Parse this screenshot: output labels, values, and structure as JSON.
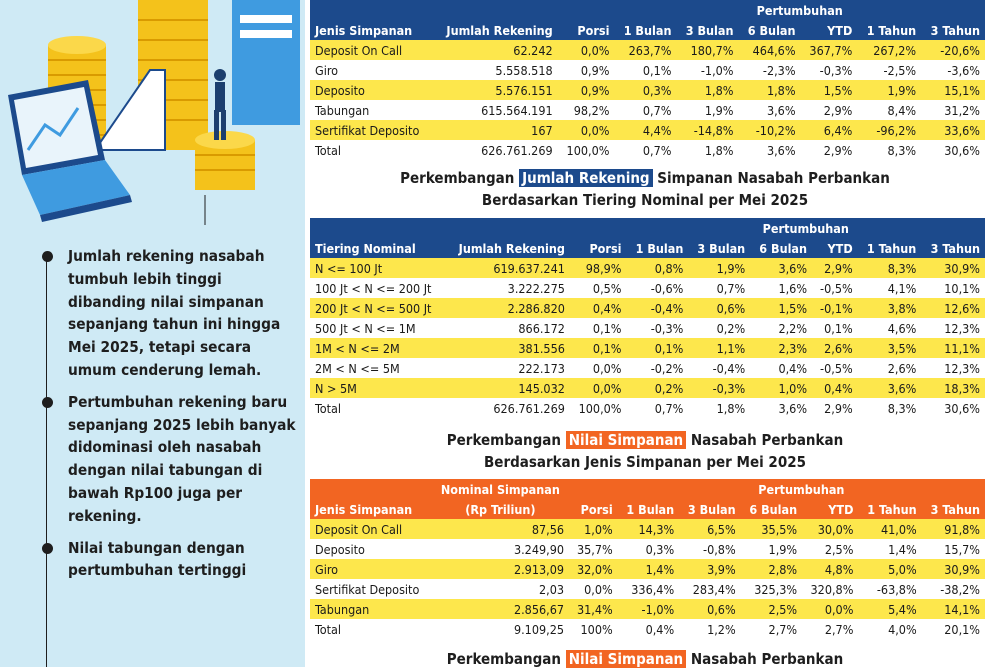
{
  "left_panel": {
    "bullets": [
      "Jumlah rekening nasabah tumbuh lebih tinggi dibanding nilai simpanan sepanjang tahun ini hingga Mei 2025, tetapi secara umum cenderung lemah.",
      "Pertumbuhan rekening baru sepanjang 2025 lebih banyak didominasi oleh nasabah dengan nilai tabungan di bawah Rp100 juga per rekening.",
      "Nilai tabungan dengan pertumbuhan tertinggi"
    ]
  },
  "table1": {
    "group_header": "Pertumbuhan",
    "headers": [
      "Jenis Simpanan",
      "Jumlah Rekening",
      "Porsi",
      "1 Bulan",
      "3 Bulan",
      "6 Bulan",
      "YTD",
      "1 Tahun",
      "3 Tahun"
    ],
    "rows": [
      [
        "Deposit On Call",
        "62.242",
        "0,0%",
        "263,7%",
        "180,7%",
        "464,6%",
        "367,7%",
        "267,2%",
        "-20,6%"
      ],
      [
        "Giro",
        "5.558.518",
        "0,9%",
        "0,1%",
        "-1,0%",
        "-2,3%",
        "-0,3%",
        "-2,5%",
        "-3,6%"
      ],
      [
        "Deposito",
        "5.576.151",
        "0,9%",
        "0,3%",
        "1,8%",
        "1,8%",
        "1,5%",
        "1,9%",
        "15,1%"
      ],
      [
        "Tabungan",
        "615.564.191",
        "98,2%",
        "0,7%",
        "1,9%",
        "3,6%",
        "2,9%",
        "8,4%",
        "31,2%"
      ],
      [
        "Sertifikat Deposito",
        "167",
        "0,0%",
        "4,4%",
        "-14,8%",
        "-10,2%",
        "6,4%",
        "-96,2%",
        "33,6%"
      ],
      [
        "Total",
        "626.761.269",
        "100,0%",
        "0,7%",
        "1,8%",
        "3,6%",
        "2,9%",
        "8,3%",
        "30,6%"
      ]
    ]
  },
  "section2": {
    "title_pre": "Perkembangan",
    "title_hl": "Jumlah Rekening",
    "title_post": "Simpanan Nasabah Perbankan",
    "subtitle": "Berdasarkan Tiering Nominal per Mei 2025"
  },
  "table2": {
    "group_header": "Pertumbuhan",
    "headers": [
      "Tiering Nominal",
      "Jumlah Rekening",
      "Porsi",
      "1 Bulan",
      "3 Bulan",
      "6 Bulan",
      "YTD",
      "1 Tahun",
      "3 Tahun"
    ],
    "rows": [
      [
        "N <= 100 Jt",
        "619.637.241",
        "98,9%",
        "0,8%",
        "1,9%",
        "3,6%",
        "2,9%",
        "8,3%",
        "30,9%"
      ],
      [
        "100 Jt < N <= 200 Jt",
        "3.222.275",
        "0,5%",
        "-0,6%",
        "0,7%",
        "1,6%",
        "-0,5%",
        "4,1%",
        "10,1%"
      ],
      [
        "200 Jt < N <= 500 Jt",
        "2.286.820",
        "0,4%",
        "-0,4%",
        "0,6%",
        "1,5%",
        "-0,1%",
        "3,8%",
        "12,6%"
      ],
      [
        "500 Jt < N <= 1M",
        "866.172",
        "0,1%",
        "-0,3%",
        "0,2%",
        "2,2%",
        "0,1%",
        "4,6%",
        "12,3%"
      ],
      [
        "1M < N <= 2M",
        "381.556",
        "0,1%",
        "0,1%",
        "1,1%",
        "2,3%",
        "2,6%",
        "3,5%",
        "11,1%"
      ],
      [
        "2M < N <= 5M",
        "222.173",
        "0,0%",
        "-0,2%",
        "-0,4%",
        "0,4%",
        "-0,5%",
        "2,6%",
        "12,3%"
      ],
      [
        "N > 5M",
        "145.032",
        "0,0%",
        "0,2%",
        "-0,3%",
        "1,0%",
        "0,4%",
        "3,6%",
        "18,3%"
      ],
      [
        "Total",
        "626.761.269",
        "100,0%",
        "0,7%",
        "1,8%",
        "3,6%",
        "2,9%",
        "8,3%",
        "30,6%"
      ]
    ]
  },
  "section3": {
    "title_pre": "Perkembangan",
    "title_hl": "Nilai Simpanan",
    "title_post": "Nasabah Perbankan",
    "subtitle": "Berdasarkan Jenis Simpanan per Mei 2025"
  },
  "table3": {
    "group_header": "Pertumbuhan",
    "headers": [
      "Jenis Simpanan",
      "Nominal Simpanan",
      "(Rp Triliun)",
      "Porsi",
      "1 Bulan",
      "3 Bulan",
      "6 Bulan",
      "YTD",
      "1 Tahun",
      "3 Tahun"
    ],
    "rows": [
      [
        "Deposit On Call",
        "87,56",
        "1,0%",
        "14,3%",
        "6,5%",
        "35,5%",
        "30,0%",
        "41,0%",
        "91,8%"
      ],
      [
        "Deposito",
        "3.249,90",
        "35,7%",
        "0,3%",
        "-0,8%",
        "1,9%",
        "2,5%",
        "1,4%",
        "15,7%"
      ],
      [
        "Giro",
        "2.913,09",
        "32,0%",
        "1,4%",
        "3,9%",
        "2,8%",
        "4,8%",
        "5,0%",
        "30,9%"
      ],
      [
        "Sertifikat Deposito",
        "2,03",
        "0,0%",
        "336,4%",
        "283,4%",
        "325,3%",
        "320,8%",
        "-63,8%",
        "-38,2%"
      ],
      [
        "Tabungan",
        "2.856,67",
        "31,4%",
        "-1,0%",
        "0,6%",
        "2,5%",
        "0,0%",
        "5,4%",
        "14,1%"
      ],
      [
        "Total",
        "9.109,25",
        "100%",
        "0,4%",
        "1,2%",
        "2,7%",
        "2,7%",
        "4,0%",
        "20,1%"
      ]
    ]
  },
  "section4": {
    "title_pre": "Perkembangan",
    "title_hl": "Nilai Simpanan",
    "title_post": "Nasabah Perbankan"
  }
}
